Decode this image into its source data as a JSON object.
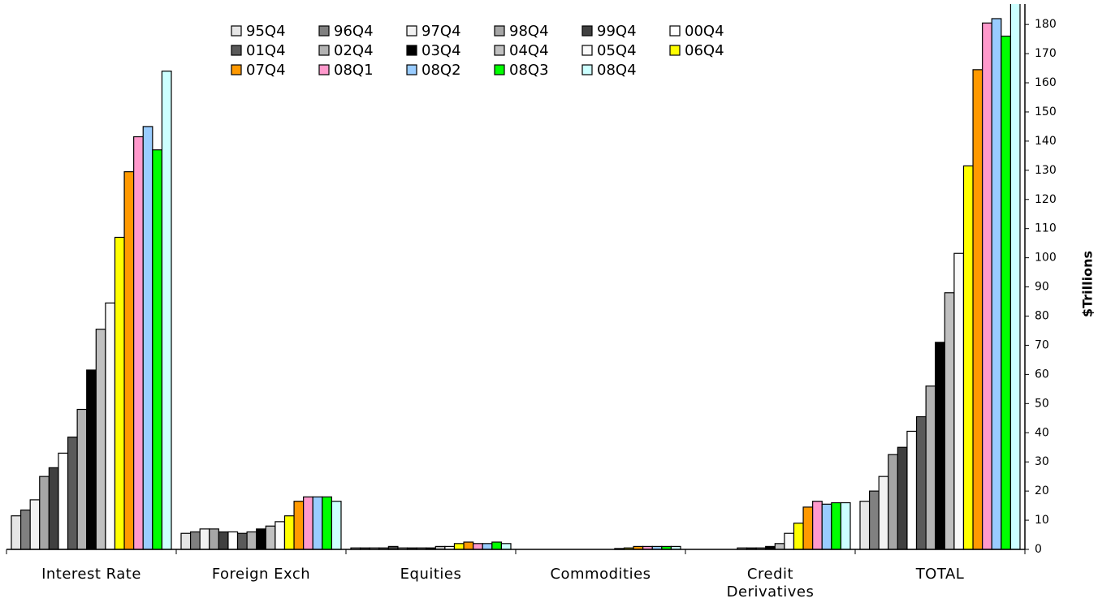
{
  "chart_data": {
    "type": "bar",
    "y_label": "$Trillions",
    "categories": [
      "Interest Rate",
      "Foreign Exch",
      "Equities",
      "Commodities",
      "Credit Derivatives",
      "TOTAL"
    ],
    "series": [
      {
        "name": "95Q4",
        "color": "#e6e6e6",
        "values": [
          11.5,
          5.5,
          0.5,
          0,
          0,
          16.5
        ]
      },
      {
        "name": "96Q4",
        "color": "#808080",
        "values": [
          13.5,
          6,
          0.5,
          0,
          0,
          20
        ]
      },
      {
        "name": "97Q4",
        "color": "#f2f2f2",
        "values": [
          17,
          7,
          0.5,
          0,
          0,
          25
        ]
      },
      {
        "name": "98Q4",
        "color": "#a6a6a6",
        "values": [
          25,
          7,
          0.5,
          0,
          0,
          32.5
        ]
      },
      {
        "name": "99Q4",
        "color": "#404040",
        "values": [
          28,
          6,
          1,
          0,
          0,
          35
        ]
      },
      {
        "name": "00Q4",
        "color": "#ffffff",
        "values": [
          33,
          6,
          0.5,
          0,
          0.5,
          40.5
        ]
      },
      {
        "name": "01Q4",
        "color": "#5a5a5a",
        "values": [
          38.5,
          5.5,
          0.5,
          0,
          0.5,
          45.5
        ]
      },
      {
        "name": "02Q4",
        "color": "#b3b3b3",
        "values": [
          48,
          6,
          0.5,
          0,
          0.5,
          56
        ]
      },
      {
        "name": "03Q4",
        "color": "#000000",
        "values": [
          61.5,
          7,
          0.5,
          0,
          1,
          71
        ]
      },
      {
        "name": "04Q4",
        "color": "#c0c0c0",
        "values": [
          75.5,
          8,
          1,
          0,
          2,
          88
        ]
      },
      {
        "name": "05Q4",
        "color": "#fafafa",
        "values": [
          84.5,
          9.5,
          1,
          0.3,
          5.5,
          101.5
        ]
      },
      {
        "name": "06Q4",
        "color": "#ffff00",
        "values": [
          107,
          11.5,
          2,
          0.5,
          9,
          131.5
        ]
      },
      {
        "name": "07Q4",
        "color": "#ff9900",
        "values": [
          129.5,
          16.5,
          2.5,
          1,
          14.5,
          164.5
        ]
      },
      {
        "name": "08Q1",
        "color": "#ff99cc",
        "values": [
          141.5,
          18,
          2,
          1,
          16.5,
          180.5
        ]
      },
      {
        "name": "08Q2",
        "color": "#99ccff",
        "values": [
          145,
          18,
          2,
          1,
          15.5,
          182
        ]
      },
      {
        "name": "08Q3",
        "color": "#00ff00",
        "values": [
          137,
          18,
          2.5,
          1,
          16,
          176
        ]
      },
      {
        "name": "08Q4",
        "color": "#ccffff",
        "values": [
          164,
          16.5,
          2,
          1,
          16,
          190
        ]
      }
    ],
    "ylim": [
      0,
      187
    ],
    "yticks": [
      0,
      10,
      20,
      30,
      40,
      50,
      60,
      70,
      80,
      90,
      100,
      110,
      120,
      130,
      140,
      150,
      160,
      170,
      180
    ],
    "legend": "top"
  }
}
